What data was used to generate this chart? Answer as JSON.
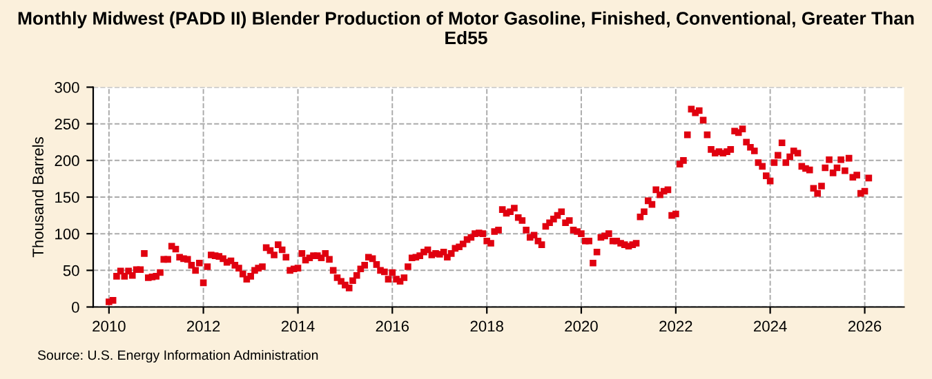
{
  "chart_data": {
    "type": "scatter",
    "title": "Monthly Midwest (PADD II) Blender Production of Motor Gasoline, Finished, Conventional, Greater Than Ed55",
    "ylabel": "Thousand Barrels",
    "annotations": [
      "Source: U.S. Energy Information Administration"
    ],
    "x": [
      "2010-01",
      "2010-02",
      "2010-03",
      "2010-04",
      "2010-05",
      "2010-06",
      "2010-07",
      "2010-08",
      "2010-09",
      "2010-10",
      "2010-11",
      "2010-12",
      "2011-01",
      "2011-02",
      "2011-03",
      "2011-04",
      "2011-05",
      "2011-06",
      "2011-07",
      "2011-08",
      "2011-09",
      "2011-10",
      "2011-11",
      "2011-12",
      "2012-01",
      "2012-02",
      "2012-03",
      "2012-04",
      "2012-05",
      "2012-06",
      "2012-07",
      "2012-08",
      "2012-09",
      "2012-10",
      "2012-11",
      "2012-12",
      "2013-01",
      "2013-02",
      "2013-03",
      "2013-04",
      "2013-05",
      "2013-06",
      "2013-07",
      "2013-08",
      "2013-09",
      "2013-10",
      "2013-11",
      "2013-12",
      "2014-01",
      "2014-02",
      "2014-03",
      "2014-04",
      "2014-05",
      "2014-06",
      "2014-07",
      "2014-08",
      "2014-09",
      "2014-10",
      "2014-11",
      "2014-12",
      "2015-01",
      "2015-02",
      "2015-03",
      "2015-04",
      "2015-05",
      "2015-06",
      "2015-07",
      "2015-08",
      "2015-09",
      "2015-10",
      "2015-11",
      "2015-12",
      "2016-01",
      "2016-02",
      "2016-03",
      "2016-04",
      "2016-05",
      "2016-06",
      "2016-07",
      "2016-08",
      "2016-09",
      "2016-10",
      "2016-11",
      "2016-12",
      "2017-01",
      "2017-02",
      "2017-03",
      "2017-04",
      "2017-05",
      "2017-06",
      "2017-07",
      "2017-08",
      "2017-09",
      "2017-10",
      "2017-11",
      "2017-12",
      "2018-01",
      "2018-02",
      "2018-03",
      "2018-04",
      "2018-05",
      "2018-06",
      "2018-07",
      "2018-08",
      "2018-09",
      "2018-10",
      "2018-11",
      "2018-12",
      "2019-01",
      "2019-02",
      "2019-03",
      "2019-04",
      "2019-05",
      "2019-06",
      "2019-07",
      "2019-08",
      "2019-09",
      "2019-10",
      "2019-11",
      "2019-12",
      "2020-01",
      "2020-02",
      "2020-03",
      "2020-04",
      "2020-05",
      "2020-06",
      "2020-07",
      "2020-08",
      "2020-09",
      "2020-10",
      "2020-11",
      "2020-12",
      "2021-01",
      "2021-02",
      "2021-03",
      "2021-04",
      "2021-05",
      "2021-06",
      "2021-07",
      "2021-08",
      "2021-09",
      "2021-10",
      "2021-11",
      "2021-12",
      "2022-01",
      "2022-02",
      "2022-03",
      "2022-04",
      "2022-05",
      "2022-06",
      "2022-07",
      "2022-08",
      "2022-09",
      "2022-10",
      "2022-11",
      "2022-12",
      "2023-01",
      "2023-02",
      "2023-03",
      "2023-04",
      "2023-05",
      "2023-06",
      "2023-07",
      "2023-08",
      "2023-09",
      "2023-10",
      "2023-11",
      "2023-12",
      "2024-01",
      "2024-02",
      "2024-03",
      "2024-04",
      "2024-05",
      "2024-06",
      "2024-07",
      "2024-08",
      "2024-09",
      "2024-10",
      "2024-11",
      "2024-12",
      "2025-01",
      "2025-02",
      "2025-03",
      "2025-04",
      "2025-05",
      "2025-06",
      "2025-07",
      "2025-08",
      "2025-09",
      "2025-10",
      "2025-11",
      "2025-12",
      "2026-01",
      "2026-02"
    ],
    "series": [
      {
        "color": "#e0000f",
        "values": [
          7,
          9,
          42,
          49,
          42,
          49,
          43,
          51,
          51,
          73,
          40,
          41,
          42,
          47,
          65,
          65,
          83,
          79,
          68,
          66,
          65,
          57,
          50,
          60,
          33,
          55,
          71,
          70,
          69,
          66,
          61,
          63,
          57,
          53,
          45,
          38,
          42,
          50,
          53,
          55,
          81,
          77,
          71,
          85,
          78,
          68,
          50,
          52,
          53,
          73,
          64,
          67,
          70,
          70,
          67,
          73,
          65,
          50,
          40,
          35,
          30,
          26,
          36,
          43,
          52,
          57,
          68,
          66,
          58,
          50,
          48,
          38,
          47,
          38,
          35,
          40,
          55,
          67,
          68,
          70,
          75,
          78,
          71,
          73,
          72,
          75,
          68,
          73,
          80,
          82,
          86,
          92,
          95,
          100,
          101,
          100,
          90,
          87,
          103,
          105,
          133,
          128,
          130,
          135,
          122,
          118,
          105,
          95,
          98,
          90,
          85,
          110,
          115,
          120,
          125,
          130,
          115,
          118,
          105,
          103,
          100,
          90,
          90,
          60,
          75,
          95,
          97,
          100,
          90,
          90,
          87,
          85,
          83,
          85,
          87,
          123,
          130,
          145,
          140,
          160,
          153,
          158,
          160,
          125,
          127,
          195,
          200,
          235,
          270,
          265,
          268,
          255,
          235,
          215,
          210,
          212,
          210,
          212,
          215,
          240,
          238,
          243,
          225,
          218,
          213,
          197,
          192,
          179,
          172,
          197,
          207,
          224,
          197,
          205,
          213,
          210,
          192,
          189,
          187,
          162,
          155,
          165,
          190,
          201,
          183,
          190,
          201,
          186,
          203,
          177,
          180,
          155,
          158,
          176
        ]
      }
    ],
    "xlim": [
      "2009-09",
      "2026-11"
    ],
    "xticks": [
      "2010",
      "2012",
      "2014",
      "2016",
      "2018",
      "2020",
      "2022",
      "2024",
      "2026"
    ],
    "ylim": [
      0,
      300
    ],
    "yticks": [
      0,
      50,
      100,
      150,
      200,
      250,
      300
    ],
    "grid": true,
    "marker": "square"
  }
}
